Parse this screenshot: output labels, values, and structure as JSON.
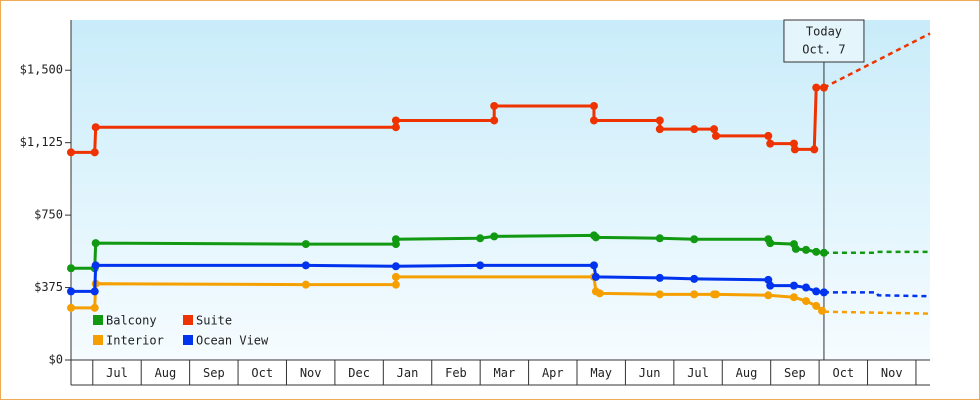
{
  "chart_data": {
    "type": "line",
    "xlim": [
      -0.45,
      17.29
    ],
    "ylim": [
      0,
      1760
    ],
    "yticks": [
      {
        "value": 0,
        "label": "$0"
      },
      {
        "value": 375,
        "label": "$375"
      },
      {
        "value": 750,
        "label": "$750"
      },
      {
        "value": 1125,
        "label": "$1,125"
      },
      {
        "value": 1500,
        "label": "$1,500"
      }
    ],
    "xticks": [
      {
        "value": 0.5,
        "label": "Jul"
      },
      {
        "value": 1.5,
        "label": "Aug"
      },
      {
        "value": 2.5,
        "label": "Sep"
      },
      {
        "value": 3.5,
        "label": "Oct"
      },
      {
        "value": 4.5,
        "label": "Nov"
      },
      {
        "value": 5.5,
        "label": "Dec"
      },
      {
        "value": 6.5,
        "label": "Jan"
      },
      {
        "value": 7.5,
        "label": "Feb"
      },
      {
        "value": 8.5,
        "label": "Mar"
      },
      {
        "value": 9.5,
        "label": "Apr"
      },
      {
        "value": 10.5,
        "label": "May"
      },
      {
        "value": 11.5,
        "label": "Jun"
      },
      {
        "value": 12.5,
        "label": "Jul"
      },
      {
        "value": 13.5,
        "label": "Aug"
      },
      {
        "value": 14.5,
        "label": "Sep"
      },
      {
        "value": 15.5,
        "label": "Oct"
      },
      {
        "value": 16.5,
        "label": "Nov"
      }
    ],
    "today": {
      "x": 15.1,
      "label": [
        "Today",
        "Oct. 7"
      ]
    },
    "series": [
      {
        "name": "Balcony",
        "color": "#119911",
        "x": [
          -0.45,
          0.04,
          0.06,
          4.4,
          6.26,
          6.26,
          8.0,
          8.29,
          10.35,
          10.39,
          11.71,
          12.42,
          13.95,
          13.99,
          14.48,
          14.52,
          14.73,
          14.94,
          15.1
        ],
        "values": [
          475,
          475,
          605,
          600,
          600,
          625,
          630,
          640,
          645,
          635,
          630,
          625,
          625,
          605,
          600,
          575,
          570,
          560,
          555
        ],
        "forecast": {
          "x": [
            15.1,
            16.18,
            16.2,
            17.29
          ],
          "values": [
            555,
            555,
            560,
            560
          ]
        }
      },
      {
        "name": "Suite",
        "color": "#ee3300",
        "x": [
          -0.45,
          0.04,
          0.06,
          6.26,
          6.26,
          8.29,
          8.29,
          10.35,
          10.35,
          11.71,
          11.71,
          12.42,
          12.83,
          12.87,
          13.95,
          13.99,
          14.48,
          14.5,
          14.9,
          14.94,
          15.1
        ],
        "values": [
          1075,
          1075,
          1205,
          1205,
          1240,
          1240,
          1315,
          1315,
          1240,
          1240,
          1195,
          1195,
          1195,
          1160,
          1160,
          1120,
          1120,
          1090,
          1090,
          1410,
          1410
        ],
        "forecast": {
          "x": [
            15.1,
            17.29
          ],
          "values": [
            1410,
            1690
          ]
        }
      },
      {
        "name": "Interior",
        "color": "#f5a000",
        "x": [
          -0.45,
          0.04,
          0.06,
          4.4,
          6.26,
          6.26,
          10.35,
          10.39,
          10.47,
          11.71,
          12.42,
          12.83,
          12.87,
          13.95,
          14.48,
          14.73,
          14.94,
          15.06
        ],
        "values": [
          270,
          270,
          395,
          390,
          390,
          430,
          430,
          355,
          345,
          340,
          340,
          340,
          340,
          335,
          325,
          305,
          280,
          255
        ],
        "forecast": {
          "x": [
            15.1,
            17.29
          ],
          "values": [
            250,
            240
          ]
        }
      },
      {
        "name": "Ocean View",
        "color": "#0033ee",
        "x": [
          -0.45,
          0.04,
          0.06,
          4.4,
          6.26,
          8.0,
          10.35,
          10.39,
          11.71,
          12.42,
          13.95,
          13.99,
          14.48,
          14.73,
          14.94,
          15.1
        ],
        "values": [
          355,
          355,
          490,
          490,
          485,
          490,
          490,
          430,
          425,
          420,
          415,
          385,
          385,
          375,
          355,
          350
        ],
        "forecast": {
          "x": [
            15.1,
            16.18,
            16.22,
            17.29
          ],
          "values": [
            350,
            350,
            335,
            330
          ]
        }
      }
    ]
  }
}
